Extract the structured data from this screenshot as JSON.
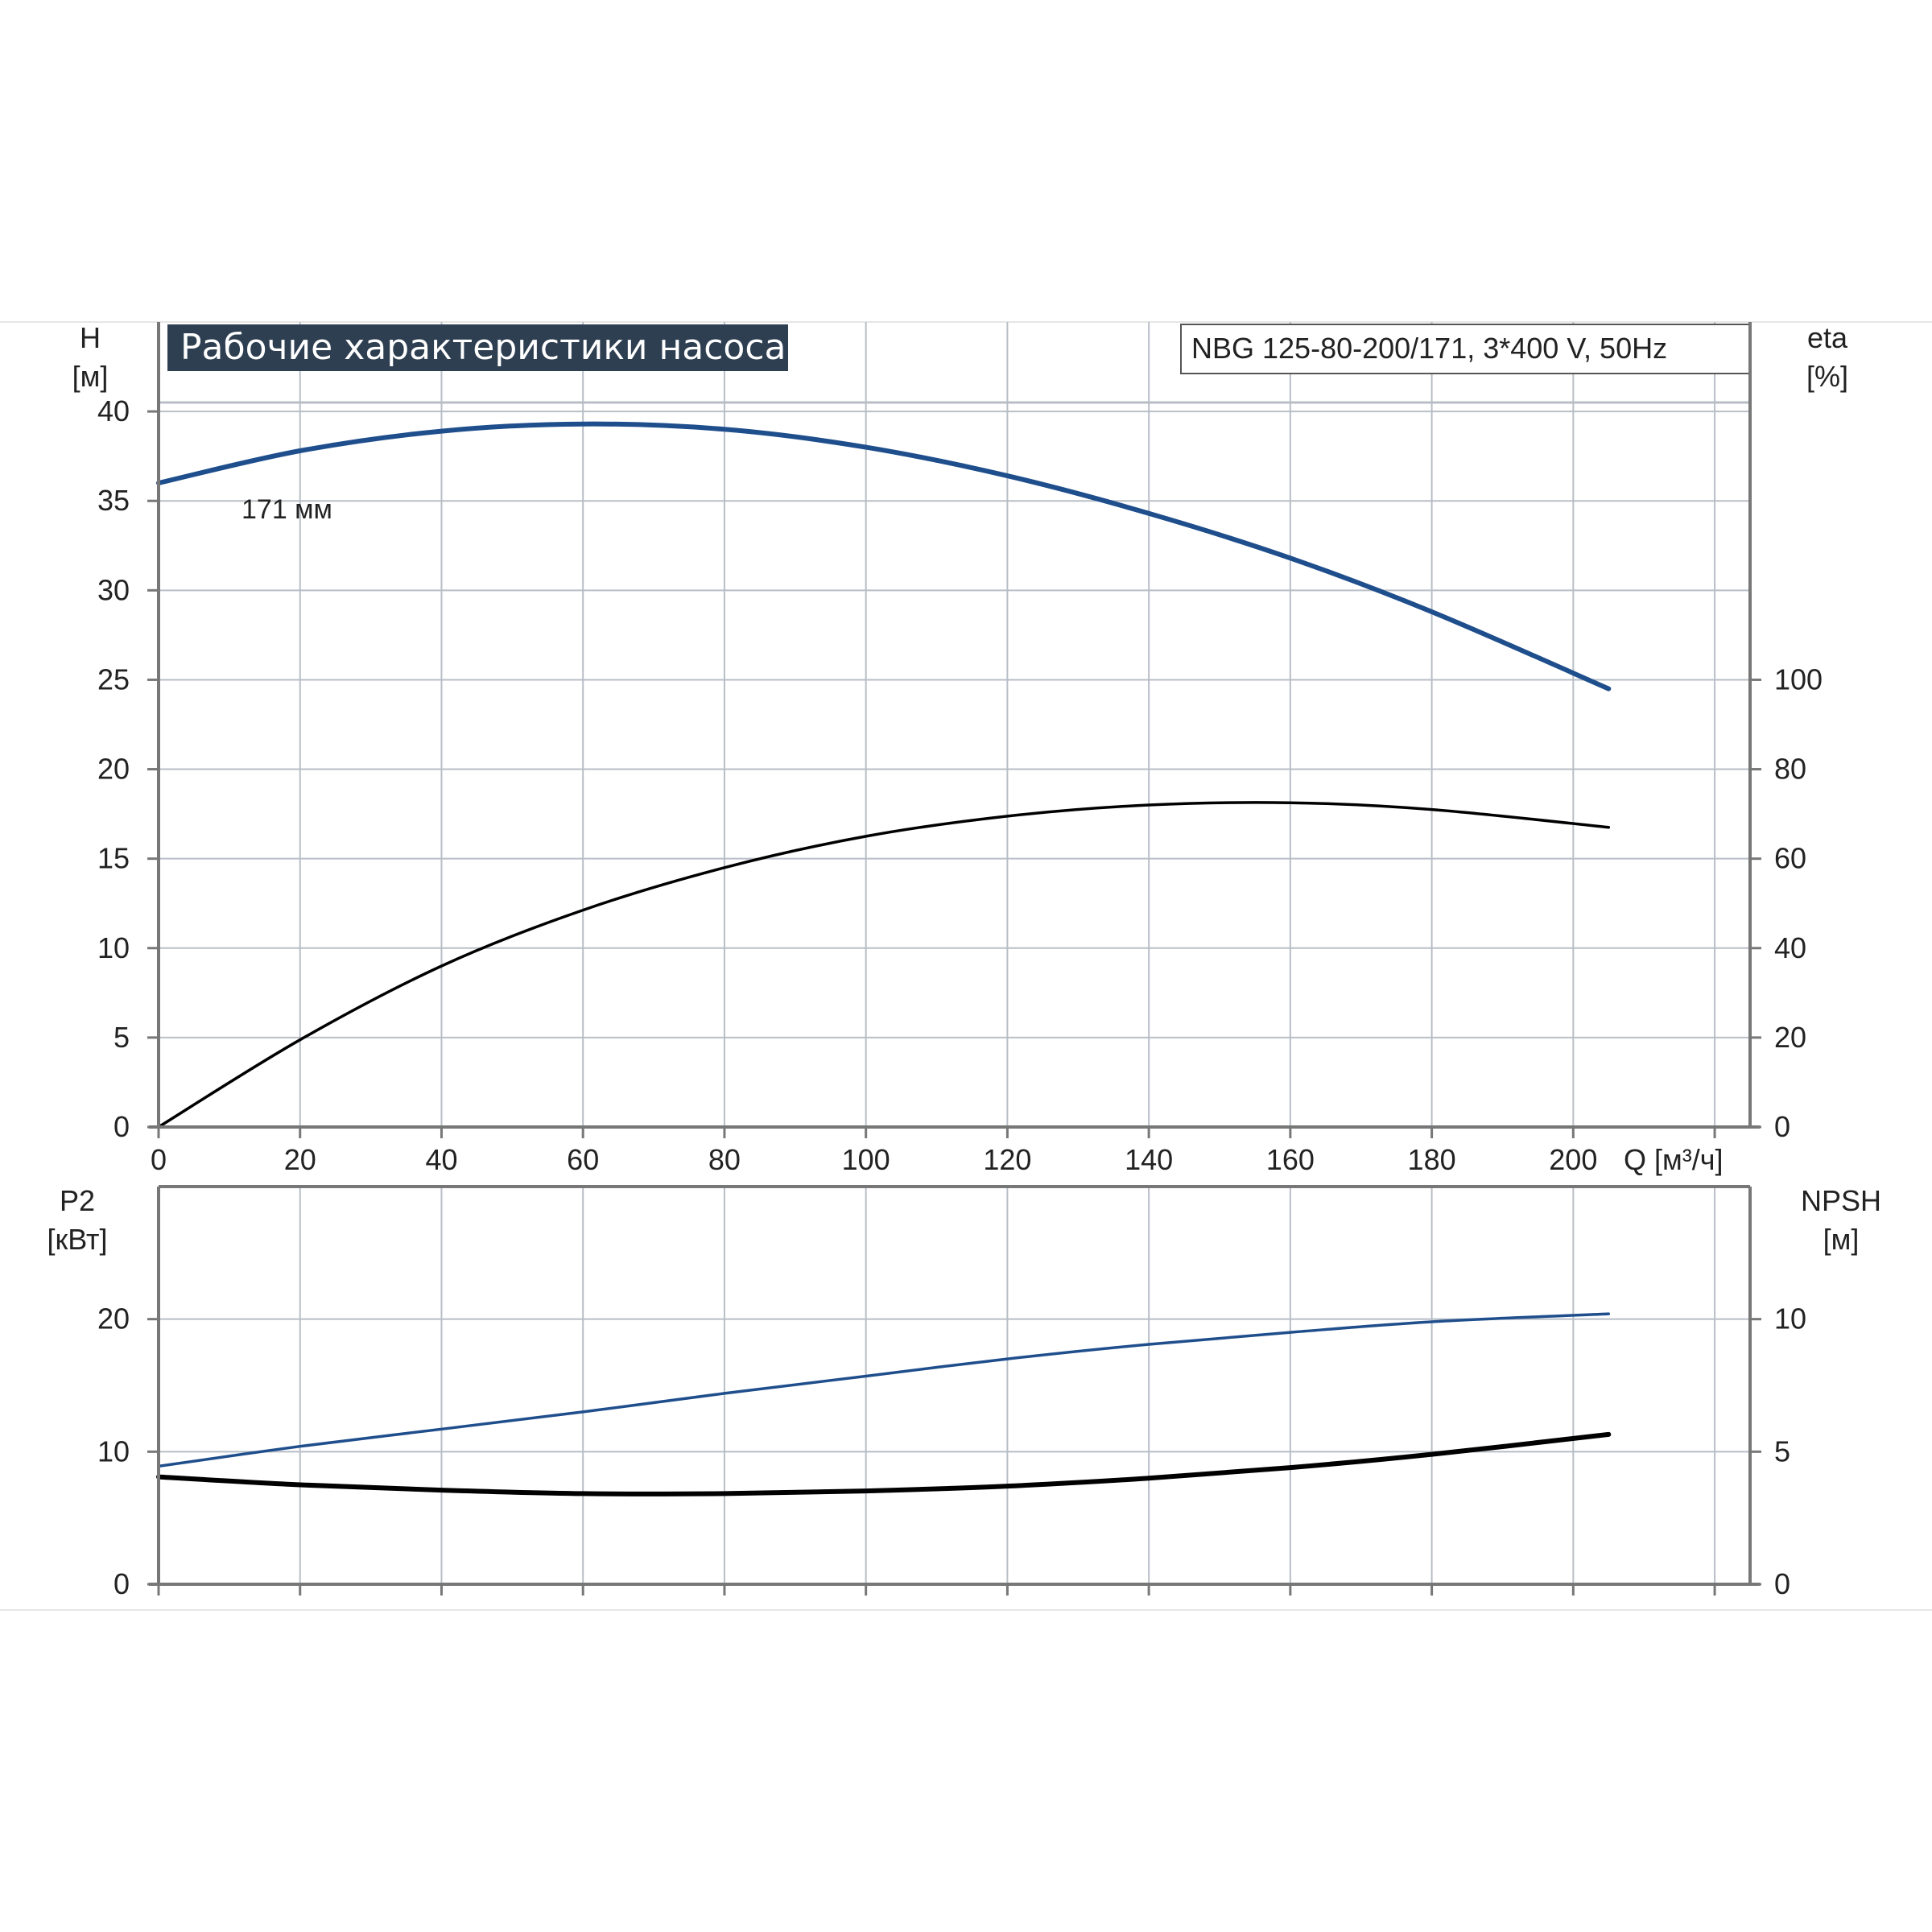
{
  "header": {
    "title": "Рабочие характеристики насоса",
    "model": "NBG 125-80-200/171, 3*400 V, 50Hz",
    "title_bg": "#2e3f52"
  },
  "colors": {
    "blue_curve": "#1f4e8c",
    "black_curve": "#000000",
    "grid": "#b8bec6",
    "frame": "#777777"
  },
  "chart_data": [
    {
      "type": "line",
      "name": "top",
      "xlabel": "Q [м³/ч]",
      "x_ticks": [
        "0",
        "20",
        "40",
        "60",
        "80",
        "100",
        "120",
        "140",
        "160",
        "180",
        "200"
      ],
      "xlim": [
        0,
        225
      ],
      "y_left": {
        "label_line1": "H",
        "label_line2": "[м]",
        "ticks": [
          "0",
          "5",
          "10",
          "15",
          "20",
          "25",
          "30",
          "35",
          "40"
        ],
        "lim": [
          0,
          45
        ]
      },
      "y_right": {
        "label_line1": "eta",
        "label_line2": "[%]",
        "ticks": [
          "0",
          "20",
          "40",
          "60",
          "80",
          "100"
        ],
        "lim": [
          0,
          180
        ]
      },
      "series": [
        {
          "label": "171 мм",
          "axis": "left",
          "color": "#1f4e8c",
          "x": [
            0,
            20,
            40,
            60,
            80,
            100,
            120,
            140,
            160,
            180,
            205
          ],
          "y": [
            36,
            37.8,
            38.9,
            39.3,
            39.0,
            38.0,
            36.4,
            34.3,
            31.8,
            28.8,
            24.5
          ]
        },
        {
          "axis": "right",
          "color": "#000000",
          "x": [
            0,
            20,
            40,
            60,
            80,
            100,
            120,
            140,
            160,
            180,
            205
          ],
          "y": [
            0,
            19.5,
            36,
            48.5,
            58,
            65,
            69.5,
            72,
            72.5,
            71,
            67
          ]
        }
      ]
    },
    {
      "type": "line",
      "name": "bottom",
      "xlim": [
        0,
        225
      ],
      "y_left": {
        "label_line1": "P2",
        "label_line2": "[кВт]",
        "ticks": [
          "0",
          "10",
          "20"
        ],
        "lim": [
          0,
          30
        ]
      },
      "y_right": {
        "label_line1": "NPSH",
        "label_line2": "[м]",
        "ticks": [
          "0",
          "5",
          "10"
        ],
        "lim": [
          0,
          15
        ]
      },
      "series": [
        {
          "axis": "left",
          "color": "#1f4e8c",
          "x": [
            0,
            20,
            40,
            60,
            80,
            100,
            120,
            140,
            160,
            180,
            205
          ],
          "y": [
            8.9,
            10.4,
            11.7,
            13.0,
            14.4,
            15.7,
            17.0,
            18.1,
            19.0,
            19.8,
            20.4
          ]
        },
        {
          "axis": "right",
          "color": "#000000",
          "x": [
            0,
            20,
            40,
            60,
            80,
            100,
            120,
            140,
            160,
            180,
            205
          ],
          "y": [
            4.05,
            3.75,
            3.55,
            3.42,
            3.42,
            3.52,
            3.7,
            4.0,
            4.4,
            4.9,
            5.65
          ]
        }
      ]
    }
  ]
}
